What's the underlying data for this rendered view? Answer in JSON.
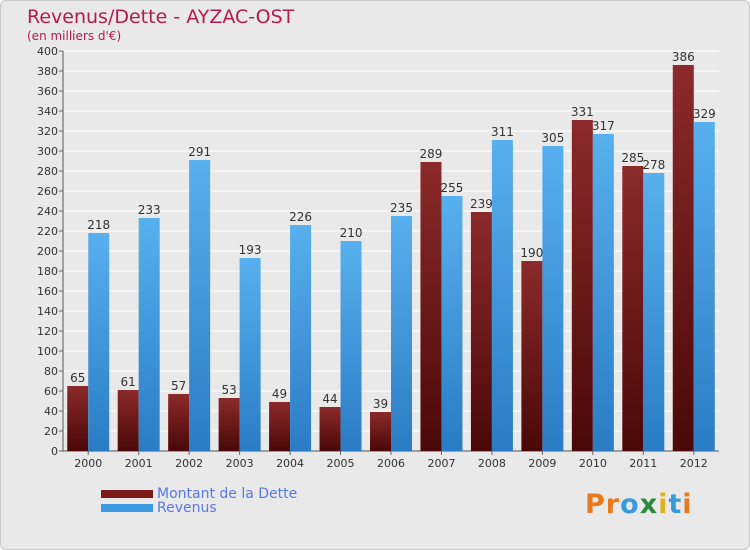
{
  "header": {
    "title": "Revenus/Dette - AYZAC-OST",
    "subtitle": "(en milliers d'€)"
  },
  "legend": [
    {
      "label": "Montant de la Dette",
      "color": "#7a1a1a"
    },
    {
      "label": "Revenus",
      "color": "#3a9ae0"
    }
  ],
  "logo": {
    "text": "Proxiti",
    "colors": [
      "#e8791f",
      "#e8791f",
      "#3a9ae0",
      "#2a8a3a",
      "#e0b020",
      "#3a9ae0",
      "#e8791f"
    ]
  },
  "colors": {
    "debt": "#7a1a1a",
    "revenue": "#3a9ae0",
    "background": "#e9e9e9",
    "grid": "#ffffff"
  },
  "chart_data": {
    "type": "bar",
    "title": "Revenus/Dette - AYZAC-OST",
    "subtitle": "(en milliers d'€)",
    "categories": [
      "2000",
      "2001",
      "2002",
      "2003",
      "2004",
      "2005",
      "2006",
      "2007",
      "2008",
      "2009",
      "2010",
      "2011",
      "2012"
    ],
    "series": [
      {
        "name": "Montant de la Dette",
        "values": [
          65,
          61,
          57,
          53,
          49,
          44,
          39,
          289,
          239,
          190,
          331,
          285,
          386
        ]
      },
      {
        "name": "Revenus",
        "values": [
          218,
          233,
          291,
          193,
          226,
          210,
          235,
          255,
          311,
          305,
          317,
          278,
          329
        ]
      }
    ],
    "ylim": [
      0,
      400
    ],
    "ytick_step": 20,
    "grid": true,
    "legend_position": "bottom-left"
  }
}
